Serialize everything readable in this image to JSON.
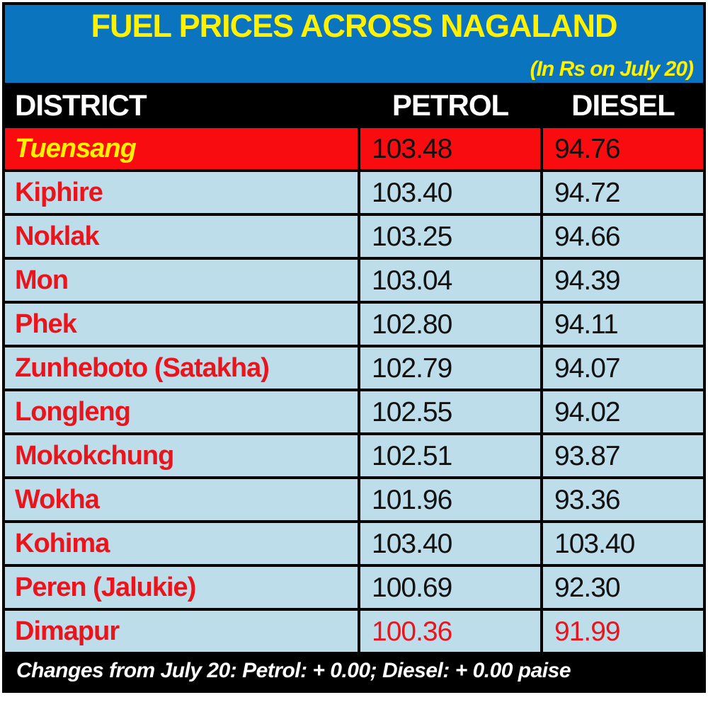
{
  "chart_data": {
    "type": "table",
    "title": "FUEL PRICES ACROSS NAGALAND",
    "date_note": "(In Rs on July 20)",
    "columns": [
      "DISTRICT",
      "PETROL",
      "DIESEL"
    ],
    "rows": [
      {
        "district": "Tuensang",
        "petrol": "103.48",
        "diesel": "94.76"
      },
      {
        "district": "Kiphire",
        "petrol": "103.40",
        "diesel": "94.72"
      },
      {
        "district": "Noklak",
        "petrol": "103.25",
        "diesel": "94.66"
      },
      {
        "district": "Mon",
        "petrol": "103.04",
        "diesel": "94.39"
      },
      {
        "district": "Phek",
        "petrol": "102.80",
        "diesel": "94.11"
      },
      {
        "district": "Zunheboto (Satakha)",
        "petrol": "102.79",
        "diesel": "94.07"
      },
      {
        "district": "Longleng",
        "petrol": "102.55",
        "diesel": "94.02"
      },
      {
        "district": "Mokokchung",
        "petrol": "102.51",
        "diesel": "93.87"
      },
      {
        "district": "Wokha",
        "petrol": "101.96",
        "diesel": "93.36"
      },
      {
        "district": "Kohima",
        "petrol": "103.40",
        "diesel": "103.40"
      },
      {
        "district": "Peren (Jalukie)",
        "petrol": "100.69",
        "diesel": "92.30"
      },
      {
        "district": "Dimapur",
        "petrol": "100.36",
        "diesel": "91.99"
      }
    ],
    "footnote": "Changes from July 20: Petrol: + 0.00; Diesel: + 0.00 paise",
    "layout_hints": {
      "highlighted_row": "Tuensang",
      "red_value_row": "Dimapur",
      "grid": "black separators between all rows and value columns",
      "legend": "none"
    }
  },
  "colors": {
    "banner_blue": "#0B74BE",
    "accent_yellow": "#FFF100",
    "header_bar_black": "#000000",
    "header_text_white": "#FFFFFF",
    "row_light_blue": "#BCDDE9",
    "highlight_row_red": "#F80C10",
    "district_text_red": "#E9151D",
    "value_text_black": "#111111"
  }
}
